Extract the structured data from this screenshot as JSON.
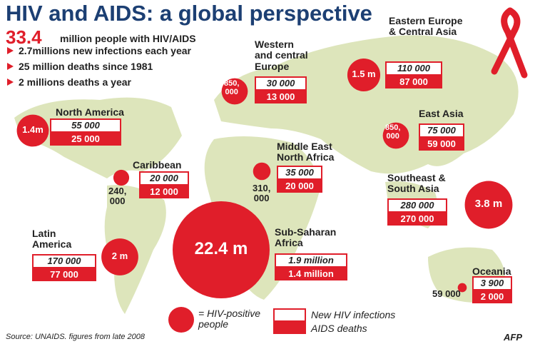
{
  "header": {
    "title": "HIV and AIDS:  a global perspective",
    "total": "33.4",
    "total_label": "million people with HIV/AIDS",
    "facts": [
      "2.7millions new infections each year",
      "25 million deaths since 1981",
      "2 millions deaths a year"
    ]
  },
  "regions": [
    {
      "name": "North America",
      "hiv": 1400000,
      "hiv_label": "1.4m",
      "new_infections": "55 000",
      "deaths": "25 000"
    },
    {
      "name": "Caribbean",
      "hiv": 240000,
      "hiv_label": "240,\n000",
      "new_infections": "20 000",
      "deaths": "12 000"
    },
    {
      "name": "Latin\nAmerica",
      "hiv": 2000000,
      "hiv_label": "2 m",
      "new_infections": "170 000",
      "deaths": "77 000"
    },
    {
      "name": "Western\nand central\nEurope",
      "hiv": 850000,
      "hiv_label": "850,\n000",
      "new_infections": "30 000",
      "deaths": "13 000"
    },
    {
      "name": "Middle East\nNorth Africa",
      "hiv": 310000,
      "hiv_label": "310,\n000",
      "new_infections": "35 000",
      "deaths": "20 000"
    },
    {
      "name": "Sub-Saharan\nAfrica",
      "hiv": 22400000,
      "hiv_label": "22.4 m",
      "new_infections": "1.9 million",
      "deaths": "1.4 million"
    },
    {
      "name": "Eastern Europe\n& Central Asia",
      "hiv": 1500000,
      "hiv_label": "1.5 m",
      "new_infections": "110 000",
      "deaths": "87 000"
    },
    {
      "name": "East Asia",
      "hiv": 850000,
      "hiv_label": "850,\n000",
      "new_infections": "75 000",
      "deaths": "59 000"
    },
    {
      "name": "Southeast &\nSouth Asia",
      "hiv": 3800000,
      "hiv_label": "3.8 m",
      "new_infections": "280 000",
      "deaths": "270 000"
    },
    {
      "name": "Oceania",
      "hiv": 59000,
      "hiv_label": "59 000",
      "new_infections": "3 900",
      "deaths": "2 000"
    }
  ],
  "legend": {
    "hiv": "= HIV-positive\npeople",
    "new": "New HIV infections",
    "deaths": "AIDS deaths"
  },
  "source": "Source: UNAIDS. figures from late 2008",
  "credit": "AFP"
}
